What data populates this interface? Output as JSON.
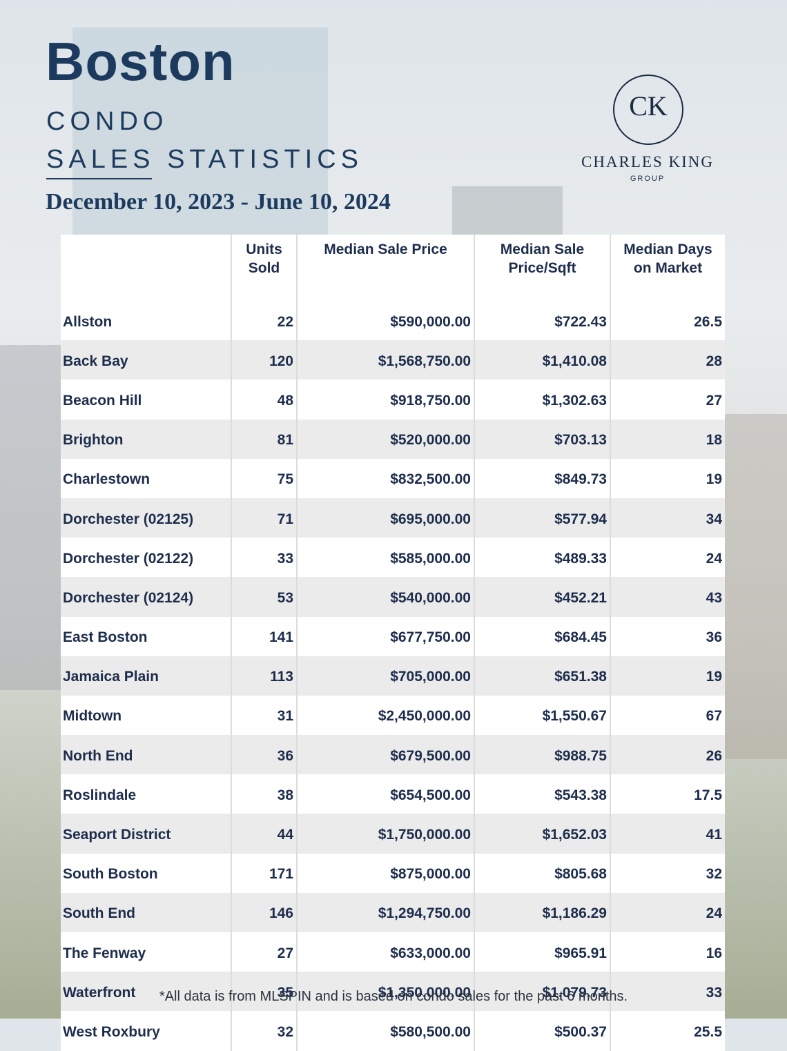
{
  "header": {
    "title": "Boston",
    "subtitle_line1": "CONDO",
    "subtitle_line2": "SALES STATISTICS",
    "date_range": "December 10, 2023 - June 10, 2024"
  },
  "logo": {
    "monogram": "CK",
    "name": "CHARLES KING",
    "group": "GROUP"
  },
  "table": {
    "columns": [
      "Units Sold",
      "Median Sale Price",
      "Median Sale Price/Sqft",
      "Median Days on Market"
    ],
    "rows": [
      [
        "Allston",
        22,
        "$590,000.00",
        "$722.43",
        26.5
      ],
      [
        "Back Bay",
        120,
        "$1,568,750.00",
        "$1,410.08",
        28
      ],
      [
        "Beacon Hill",
        48,
        "$918,750.00",
        "$1,302.63",
        27
      ],
      [
        "Brighton",
        81,
        "$520,000.00",
        "$703.13",
        18
      ],
      [
        "Charlestown",
        75,
        "$832,500.00",
        "$849.73",
        19
      ],
      [
        "Dorchester (02125)",
        71,
        "$695,000.00",
        "$577.94",
        34
      ],
      [
        "Dorchester (02122)",
        33,
        "$585,000.00",
        "$489.33",
        24
      ],
      [
        "Dorchester (02124)",
        53,
        "$540,000.00",
        "$452.21",
        43
      ],
      [
        "East Boston",
        141,
        "$677,750.00",
        "$684.45",
        36
      ],
      [
        "Jamaica Plain",
        113,
        "$705,000.00",
        "$651.38",
        19
      ],
      [
        "Midtown",
        31,
        "$2,450,000.00",
        "$1,550.67",
        67
      ],
      [
        "North End",
        36,
        "$679,500.00",
        "$988.75",
        26
      ],
      [
        "Roslindale",
        38,
        "$654,500.00",
        "$543.38",
        17.5
      ],
      [
        "Seaport District",
        44,
        "$1,750,000.00",
        "$1,652.03",
        41
      ],
      [
        "South Boston",
        171,
        "$875,000.00",
        "$805.68",
        32
      ],
      [
        "South End",
        146,
        "$1,294,750.00",
        "$1,186.29",
        24
      ],
      [
        "The Fenway",
        27,
        "$633,000.00",
        "$965.91",
        16
      ],
      [
        "Waterfront",
        35,
        "$1,350,000.00",
        "$1,079.73",
        33
      ],
      [
        "West Roxbury",
        32,
        "$580,500.00",
        "$500.37",
        25.5
      ]
    ]
  },
  "footnote": "*All data is from MLSPIN and is based on condo sales for the past 6 months."
}
